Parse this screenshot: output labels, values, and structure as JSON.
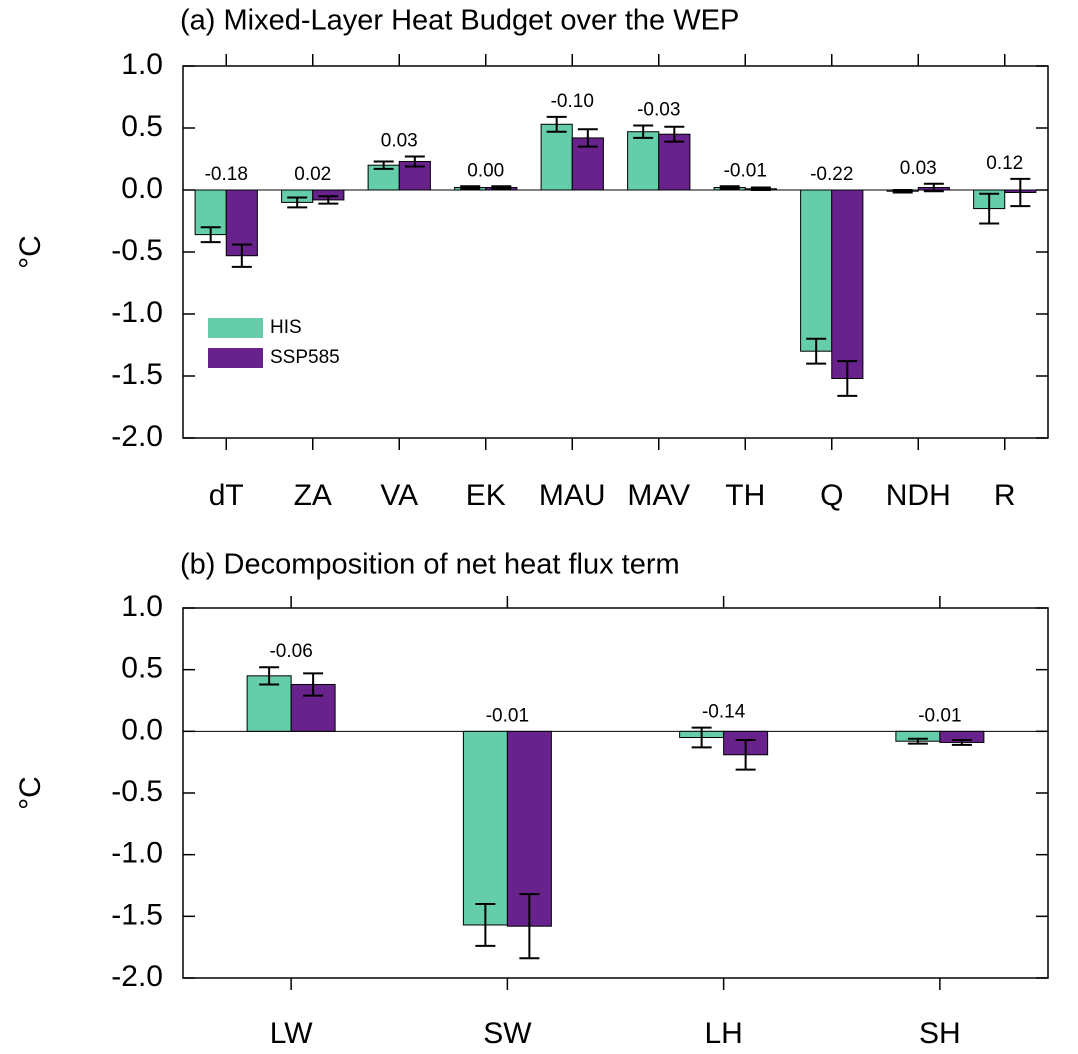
{
  "chart_data": [
    {
      "type": "bar",
      "title": "(a) Mixed-Layer Heat Budget over the WEP",
      "y_label": "°C",
      "categories": [
        "dT",
        "ZA",
        "VA",
        "EK",
        "MAU",
        "MAV",
        "TH",
        "Q",
        "NDH",
        "R"
      ],
      "series": [
        {
          "name": "HIS",
          "color": "#66cdaa",
          "values": [
            -0.36,
            -0.1,
            0.2,
            0.02,
            0.53,
            0.47,
            0.02,
            -1.3,
            -0.01,
            -0.15
          ],
          "errors": [
            0.06,
            0.04,
            0.03,
            0.01,
            0.06,
            0.05,
            0.01,
            0.1,
            0.01,
            0.12
          ]
        },
        {
          "name": "SSP585",
          "color": "#68228b",
          "values": [
            -0.53,
            -0.08,
            0.23,
            0.02,
            0.42,
            0.45,
            0.01,
            -1.52,
            0.02,
            -0.02
          ],
          "errors": [
            0.09,
            0.03,
            0.04,
            0.01,
            0.07,
            0.06,
            0.01,
            0.14,
            0.03,
            0.11
          ]
        }
      ],
      "diff_labels": [
        "-0.18",
        "0.02",
        "0.03",
        "0.00",
        "-0.10",
        "-0.03",
        "-0.01",
        "-0.22",
        "0.03",
        "0.12"
      ],
      "ylim": [
        -2.0,
        1.0
      ],
      "yticks": [
        {
          "value": 1.0,
          "label": "1.0"
        },
        {
          "value": 0.5,
          "label": "0.5"
        },
        {
          "value": 0.0,
          "label": "0.0"
        },
        {
          "value": -0.5,
          "label": "-0.5"
        },
        {
          "value": -1.0,
          "label": "-1.0"
        },
        {
          "value": -1.5,
          "label": "-1.5"
        },
        {
          "value": -2.0,
          "label": "-2.0"
        }
      ],
      "legend": "center-left"
    },
    {
      "type": "bar",
      "title": "(b) Decomposition of net heat flux term",
      "y_label": "°C",
      "categories": [
        "LW",
        "SW",
        "LH",
        "SH"
      ],
      "series": [
        {
          "name": "HIS",
          "color": "#66cdaa",
          "values": [
            0.45,
            -1.57,
            -0.05,
            -0.08
          ],
          "errors": [
            0.07,
            0.17,
            0.08,
            0.02
          ]
        },
        {
          "name": "SSP585",
          "color": "#68228b",
          "values": [
            0.38,
            -1.58,
            -0.19,
            -0.09
          ],
          "errors": [
            0.09,
            0.26,
            0.12,
            0.02
          ]
        }
      ],
      "diff_labels": [
        "-0.06",
        "-0.01",
        "-0.14",
        "-0.01"
      ],
      "ylim": [
        -2.0,
        1.0
      ],
      "yticks": [
        {
          "value": 1.0,
          "label": "1.0"
        },
        {
          "value": 0.5,
          "label": "0.5"
        },
        {
          "value": 0.0,
          "label": "0.0"
        },
        {
          "value": -0.5,
          "label": "-0.5"
        },
        {
          "value": -1.0,
          "label": "-1.0"
        },
        {
          "value": -1.5,
          "label": "-1.5"
        },
        {
          "value": -2.0,
          "label": "-2.0"
        }
      ]
    }
  ]
}
